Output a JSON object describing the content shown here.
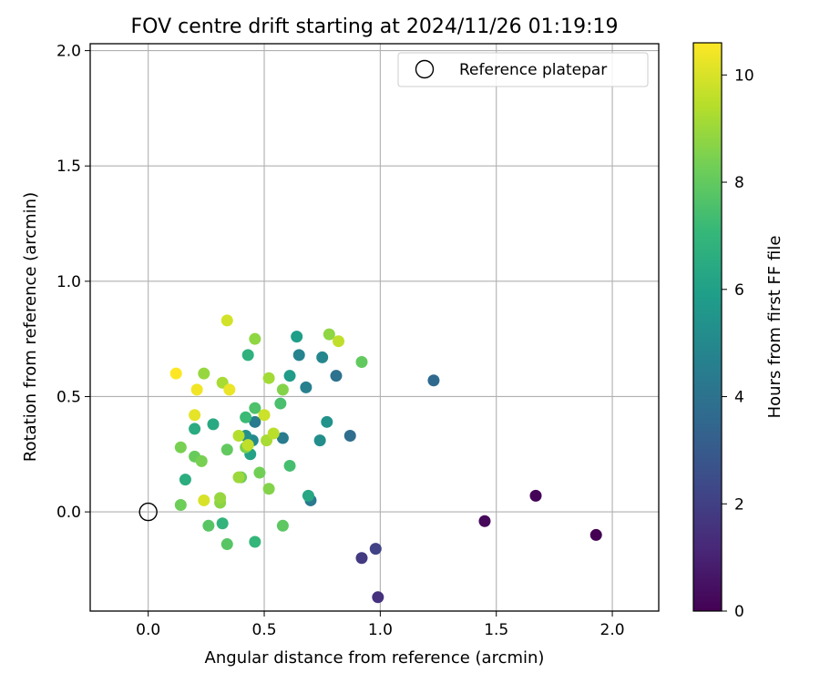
{
  "chart_data": {
    "type": "scatter",
    "title": "FOV centre drift starting at 2024/11/26 01:19:19",
    "xlabel": "Angular distance from reference (arcmin)",
    "ylabel": "Rotation from reference (arcmin)",
    "xlim": [
      -0.25,
      2.2
    ],
    "ylim": [
      -0.43,
      2.03
    ],
    "xticks": [
      0.0,
      0.5,
      1.0,
      1.5,
      2.0
    ],
    "xtick_labels": [
      "0.0",
      "0.5",
      "1.0",
      "1.5",
      "2.0"
    ],
    "yticks": [
      0.0,
      0.5,
      1.0,
      1.5,
      2.0
    ],
    "ytick_labels": [
      "0.0",
      "0.5",
      "1.0",
      "1.5",
      "2.0"
    ],
    "grid": true,
    "legend": {
      "position": "top-right",
      "entries": [
        "Reference platepar"
      ]
    },
    "reference_point": {
      "name": "Reference platepar",
      "x": 0.0,
      "y": 0.0
    },
    "colorbar": {
      "label": "Hours from first FF file",
      "min": 0,
      "max": 10.6,
      "ticks": [
        0,
        2,
        4,
        6,
        8,
        10
      ],
      "tick_labels": [
        "0",
        "2",
        "4",
        "6",
        "8",
        "10"
      ],
      "colormap": "viridis"
    },
    "points": [
      {
        "x": 1.93,
        "y": -0.1,
        "c": 0.0
      },
      {
        "x": 1.67,
        "y": 0.07,
        "c": 0.1
      },
      {
        "x": 1.45,
        "y": -0.04,
        "c": 0.2
      },
      {
        "x": 0.99,
        "y": -0.37,
        "c": 1.5
      },
      {
        "x": 0.92,
        "y": -0.2,
        "c": 1.8
      },
      {
        "x": 0.98,
        "y": -0.16,
        "c": 2.1
      },
      {
        "x": 1.23,
        "y": 0.57,
        "c": 3.6
      },
      {
        "x": 0.87,
        "y": 0.33,
        "c": 3.8
      },
      {
        "x": 0.81,
        "y": 0.59,
        "c": 4.0
      },
      {
        "x": 0.7,
        "y": 0.05,
        "c": 4.3
      },
      {
        "x": 0.46,
        "y": 0.39,
        "c": 4.4
      },
      {
        "x": 0.58,
        "y": 0.32,
        "c": 4.4
      },
      {
        "x": 0.68,
        "y": 0.54,
        "c": 4.6
      },
      {
        "x": 0.65,
        "y": 0.68,
        "c": 4.8
      },
      {
        "x": 0.75,
        "y": 0.67,
        "c": 4.9
      },
      {
        "x": 0.45,
        "y": 0.31,
        "c": 5.0
      },
      {
        "x": 0.74,
        "y": 0.31,
        "c": 5.2
      },
      {
        "x": 0.77,
        "y": 0.39,
        "c": 5.4
      },
      {
        "x": 0.42,
        "y": 0.33,
        "c": 5.3
      },
      {
        "x": 0.61,
        "y": 0.59,
        "c": 5.8
      },
      {
        "x": 0.64,
        "y": 0.76,
        "c": 5.9
      },
      {
        "x": 0.44,
        "y": 0.25,
        "c": 6.1
      },
      {
        "x": 0.69,
        "y": 0.07,
        "c": 6.3
      },
      {
        "x": 0.28,
        "y": 0.38,
        "c": 6.4
      },
      {
        "x": 0.2,
        "y": 0.36,
        "c": 6.5
      },
      {
        "x": 0.16,
        "y": 0.14,
        "c": 6.6
      },
      {
        "x": 0.43,
        "y": 0.68,
        "c": 6.8
      },
      {
        "x": 0.32,
        "y": -0.05,
        "c": 6.9
      },
      {
        "x": 0.46,
        "y": -0.13,
        "c": 7.0
      },
      {
        "x": 0.42,
        "y": 0.41,
        "c": 7.2
      },
      {
        "x": 0.61,
        "y": 0.2,
        "c": 7.4
      },
      {
        "x": 0.57,
        "y": 0.47,
        "c": 7.5
      },
      {
        "x": 0.46,
        "y": 0.45,
        "c": 7.6
      },
      {
        "x": 0.26,
        "y": -0.06,
        "c": 7.8
      },
      {
        "x": 0.34,
        "y": -0.14,
        "c": 7.8
      },
      {
        "x": 0.58,
        "y": -0.06,
        "c": 7.9
      },
      {
        "x": 0.92,
        "y": 0.65,
        "c": 8.0
      },
      {
        "x": 0.34,
        "y": 0.27,
        "c": 8.0
      },
      {
        "x": 0.2,
        "y": 0.24,
        "c": 8.1
      },
      {
        "x": 0.14,
        "y": 0.03,
        "c": 8.2
      },
      {
        "x": 0.4,
        "y": 0.15,
        "c": 8.2
      },
      {
        "x": 0.48,
        "y": 0.17,
        "c": 8.3
      },
      {
        "x": 0.23,
        "y": 0.22,
        "c": 8.4
      },
      {
        "x": 0.14,
        "y": 0.28,
        "c": 8.4
      },
      {
        "x": 0.42,
        "y": 0.28,
        "c": 8.5
      },
      {
        "x": 0.52,
        "y": 0.1,
        "c": 8.6
      },
      {
        "x": 0.58,
        "y": 0.53,
        "c": 8.6
      },
      {
        "x": 0.31,
        "y": 0.04,
        "c": 8.7
      },
      {
        "x": 0.46,
        "y": 0.75,
        "c": 8.8
      },
      {
        "x": 0.78,
        "y": 0.77,
        "c": 8.8
      },
      {
        "x": 0.24,
        "y": 0.6,
        "c": 8.9
      },
      {
        "x": 0.31,
        "y": 0.06,
        "c": 8.9
      },
      {
        "x": 0.39,
        "y": 0.15,
        "c": 9.0
      },
      {
        "x": 0.52,
        "y": 0.58,
        "c": 9.1
      },
      {
        "x": 0.32,
        "y": 0.56,
        "c": 9.2
      },
      {
        "x": 0.51,
        "y": 0.31,
        "c": 9.2
      },
      {
        "x": 0.39,
        "y": 0.33,
        "c": 9.4
      },
      {
        "x": 0.54,
        "y": 0.34,
        "c": 9.5
      },
      {
        "x": 0.82,
        "y": 0.74,
        "c": 9.6
      },
      {
        "x": 0.43,
        "y": 0.29,
        "c": 9.6
      },
      {
        "x": 0.5,
        "y": 0.42,
        "c": 9.8
      },
      {
        "x": 0.34,
        "y": 0.83,
        "c": 9.9
      },
      {
        "x": 0.24,
        "y": 0.05,
        "c": 10.0
      },
      {
        "x": 0.2,
        "y": 0.42,
        "c": 10.2
      },
      {
        "x": 0.35,
        "y": 0.53,
        "c": 10.3
      },
      {
        "x": 0.21,
        "y": 0.53,
        "c": 10.4
      },
      {
        "x": 0.12,
        "y": 0.6,
        "c": 10.6
      }
    ]
  }
}
